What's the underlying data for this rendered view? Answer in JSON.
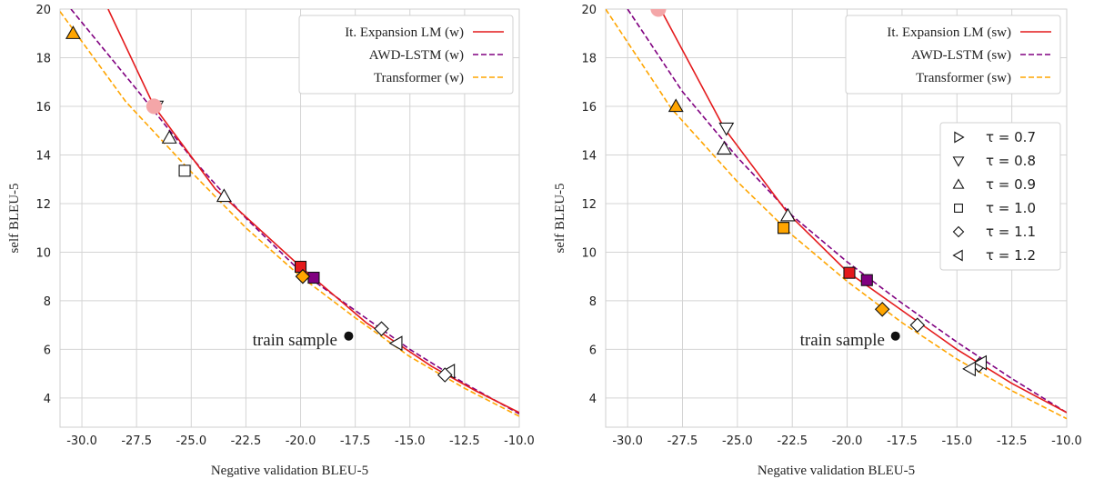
{
  "chart_data": [
    {
      "type": "line",
      "xlabel": "Negative validation BLEU-5",
      "ylabel": "self BLEU-5",
      "xlim": [
        -31,
        -10
      ],
      "ylim": [
        2.8,
        20
      ],
      "xticks": [
        -30.0,
        -27.5,
        -25.0,
        -22.5,
        -20.0,
        -17.5,
        -15.0,
        -12.5,
        -10.0
      ],
      "xtick_labels": [
        "-30.0",
        "-27.5",
        "-25.0",
        "-22.5",
        "-20.0",
        "-17.5",
        "-15.0",
        "-12.5",
        "-10.0"
      ],
      "yticks": [
        4,
        6,
        8,
        10,
        12,
        14,
        16,
        18,
        20
      ],
      "ytick_labels": [
        "4",
        "6",
        "8",
        "10",
        "12",
        "14",
        "16",
        "18",
        "20"
      ],
      "grid": true,
      "legend_position": "top-right",
      "series": [
        {
          "name": "It. Expansion LM (w)",
          "color": "#e41a1c",
          "dash": "solid",
          "x": [
            -28.8,
            -26.7,
            -23.9,
            -20.0,
            -17.0,
            -14.0,
            -12.0,
            -10.0
          ],
          "y": [
            20.0,
            16.0,
            12.6,
            9.4,
            7.1,
            5.3,
            4.3,
            3.4
          ],
          "markers": [
            {
              "x": -26.7,
              "y": 16.0,
              "shape": "circle",
              "fill": "#f4a6a8"
            },
            {
              "x": -20.0,
              "y": 9.4,
              "shape": "square",
              "fill": "#e41a1c"
            }
          ]
        },
        {
          "name": "AWD-LSTM (w)",
          "color": "#800080",
          "dash": "dashed",
          "x": [
            -30.5,
            -27.5,
            -25.0,
            -22.5,
            -20.0,
            -17.5,
            -15.0,
            -12.5,
            -10.0
          ],
          "y": [
            20.0,
            16.7,
            13.9,
            11.4,
            9.2,
            7.6,
            6.0,
            4.6,
            3.35
          ],
          "markers": [
            {
              "x": -19.4,
              "y": 8.95,
              "shape": "square",
              "fill": "#800080"
            }
          ]
        },
        {
          "name": "Transformer (w)",
          "color": "#ffa500",
          "dash": "dashed",
          "x": [
            -31.0,
            -28.0,
            -25.0,
            -22.5,
            -20.0,
            -17.5,
            -15.0,
            -12.5,
            -10.0
          ],
          "y": [
            19.9,
            16.2,
            13.3,
            11.0,
            9.0,
            7.3,
            5.7,
            4.4,
            3.25
          ],
          "markers": [
            {
              "x": -19.9,
              "y": 9.0,
              "shape": "diamond",
              "fill": "#ffa500"
            },
            {
              "x": -30.4,
              "y": 19.0,
              "shape": "triangle-up",
              "fill": "#ffa500"
            }
          ]
        }
      ],
      "temperature_markers": [
        {
          "tau": 0.8,
          "shape": "triangle-down",
          "x": -26.6,
          "y": 16.0
        },
        {
          "tau": 0.9,
          "shape": "triangle-up",
          "x": -26.0,
          "y": 14.7
        },
        {
          "tau": 1.0,
          "shape": "square",
          "x": -25.3,
          "y": 13.35
        },
        {
          "tau": 0.9,
          "shape": "triangle-up",
          "x": -23.5,
          "y": 12.3
        },
        {
          "tau": 1.1,
          "shape": "diamond",
          "x": -16.3,
          "y": 6.85
        },
        {
          "tau": 1.2,
          "shape": "triangle-left",
          "x": -15.6,
          "y": 6.25
        },
        {
          "tau": 1.2,
          "shape": "triangle-left",
          "x": -13.2,
          "y": 5.1
        },
        {
          "tau": 1.1,
          "shape": "diamond",
          "x": -13.4,
          "y": 4.95
        }
      ],
      "reference_point": {
        "label": "train sample",
        "x": -17.8,
        "y": 6.55
      }
    },
    {
      "type": "line",
      "xlabel": "Negative validation BLEU-5",
      "ylabel": "self BLEU-5",
      "xlim": [
        -31,
        -10
      ],
      "ylim": [
        2.8,
        20
      ],
      "xticks": [
        -30.0,
        -27.5,
        -25.0,
        -22.5,
        -20.0,
        -17.5,
        -15.0,
        -12.5,
        -10.0
      ],
      "xtick_labels": [
        "-30.0",
        "-27.5",
        "-25.0",
        "-22.5",
        "-20.0",
        "-17.5",
        "-15.0",
        "-12.5",
        "-10.0"
      ],
      "yticks": [
        4,
        6,
        8,
        10,
        12,
        14,
        16,
        18,
        20
      ],
      "ytick_labels": [
        "4",
        "6",
        "8",
        "10",
        "12",
        "14",
        "16",
        "18",
        "20"
      ],
      "grid": true,
      "legend_position": "top-right",
      "series": [
        {
          "name": "It. Expansion LM (sw)",
          "color": "#e41a1c",
          "dash": "solid",
          "x": [
            -28.5,
            -25.6,
            -22.7,
            -20.0,
            -17.5,
            -15.0,
            -12.5,
            -10.0
          ],
          "y": [
            20.0,
            15.1,
            11.6,
            9.2,
            7.6,
            6.0,
            4.6,
            3.4
          ],
          "markers": [
            {
              "x": -28.6,
              "y": 20.0,
              "shape": "circle",
              "fill": "#f4a6a8"
            },
            {
              "x": -19.9,
              "y": 9.15,
              "shape": "square",
              "fill": "#e41a1c"
            }
          ]
        },
        {
          "name": "AWD-LSTM (sw)",
          "color": "#800080",
          "dash": "dashed",
          "x": [
            -30.0,
            -27.5,
            -25.0,
            -22.5,
            -20.0,
            -17.5,
            -15.0,
            -12.5,
            -10.0
          ],
          "y": [
            20.0,
            16.6,
            13.9,
            11.5,
            9.6,
            7.9,
            6.3,
            4.8,
            3.4
          ],
          "markers": [
            {
              "x": -19.1,
              "y": 8.85,
              "shape": "square",
              "fill": "#800080"
            }
          ]
        },
        {
          "name": "Transformer (sw)",
          "color": "#ffa500",
          "dash": "dashed",
          "x": [
            -31.0,
            -28.0,
            -25.0,
            -22.5,
            -20.0,
            -17.5,
            -15.0,
            -12.5,
            -10.0
          ],
          "y": [
            20.0,
            15.9,
            12.9,
            10.7,
            8.8,
            7.1,
            5.6,
            4.3,
            3.15
          ],
          "markers": [
            {
              "x": -18.4,
              "y": 7.65,
              "shape": "diamond",
              "fill": "#ffa500"
            },
            {
              "x": -27.8,
              "y": 16.0,
              "shape": "triangle-up",
              "fill": "#ffa500"
            },
            {
              "x": -22.9,
              "y": 11.0,
              "shape": "square",
              "fill": "#ffa500"
            }
          ]
        }
      ],
      "temperature_markers": [
        {
          "tau": 0.8,
          "shape": "triangle-down",
          "x": -25.5,
          "y": 15.1
        },
        {
          "tau": 0.9,
          "shape": "triangle-up",
          "x": -25.6,
          "y": 14.25
        },
        {
          "tau": 0.9,
          "shape": "triangle-up",
          "x": -22.7,
          "y": 11.5
        },
        {
          "tau": 1.0,
          "shape": "square",
          "x": -22.9,
          "y": 11.0
        },
        {
          "tau": 1.1,
          "shape": "diamond",
          "x": -16.8,
          "y": 7.0
        },
        {
          "tau": 1.1,
          "shape": "diamond",
          "x": -14.0,
          "y": 5.35
        },
        {
          "tau": 1.2,
          "shape": "triangle-left",
          "x": -13.9,
          "y": 5.45
        },
        {
          "tau": 1.2,
          "shape": "triangle-left",
          "x": -14.4,
          "y": 5.2
        }
      ],
      "reference_point": {
        "label": "train sample",
        "x": -17.8,
        "y": 6.55
      },
      "marker_legend": [
        {
          "shape": "triangle-right",
          "label": "τ = 0.7"
        },
        {
          "shape": "triangle-down",
          "label": "τ = 0.8"
        },
        {
          "shape": "triangle-up",
          "label": "τ = 0.9"
        },
        {
          "shape": "square",
          "label": "τ = 1.0"
        },
        {
          "shape": "diamond",
          "label": "τ = 1.1"
        },
        {
          "shape": "triangle-left",
          "label": "τ = 1.2"
        }
      ]
    }
  ]
}
